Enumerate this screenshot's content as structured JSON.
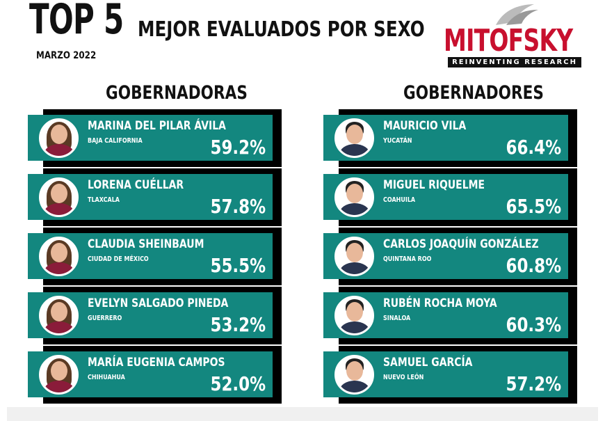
{
  "header": {
    "title_big": "TOP 5",
    "title_rest": "MEJOR EVALUADOS POR SEXO",
    "date": "MARZO 2022"
  },
  "logo": {
    "name": "MITOFSKY",
    "tagline": "REINVENTING RESEARCH",
    "brand_color": "#c8102e"
  },
  "colors": {
    "card": "#13877f",
    "shadow": "#000000"
  },
  "women": {
    "heading": "GOBERNADORAS",
    "items": [
      {
        "name": "MARINA DEL PILAR ÁVILA",
        "state": "BAJA CALIFORNIA",
        "pct": "59.2%"
      },
      {
        "name": "LORENA CUÉLLAR",
        "state": "TLAXCALA",
        "pct": "57.8%"
      },
      {
        "name": "CLAUDIA SHEINBAUM",
        "state": "CIUDAD DE MÉXICO",
        "pct": "55.5%"
      },
      {
        "name": "EVELYN SALGADO PINEDA",
        "state": "GUERRERO",
        "pct": "53.2%"
      },
      {
        "name": "MARÍA EUGENIA CAMPOS",
        "state": "CHIHUAHUA",
        "pct": "52.0%"
      }
    ]
  },
  "men": {
    "heading": "GOBERNADORES",
    "items": [
      {
        "name": "MAURICIO VILA",
        "state": "YUCATÁN",
        "pct": "66.4%"
      },
      {
        "name": "MIGUEL RIQUELME",
        "state": "COAHUILA",
        "pct": "65.5%"
      },
      {
        "name": "CARLOS JOAQUÍN GONZÁLEZ",
        "state": "QUINTANA ROO",
        "pct": "60.8%"
      },
      {
        "name": "RUBÉN ROCHA MOYA",
        "state": "SINALOA",
        "pct": "60.3%"
      },
      {
        "name": "SAMUEL GARCÍA",
        "state": "NUEVO LEÓN",
        "pct": "57.2%"
      }
    ]
  }
}
